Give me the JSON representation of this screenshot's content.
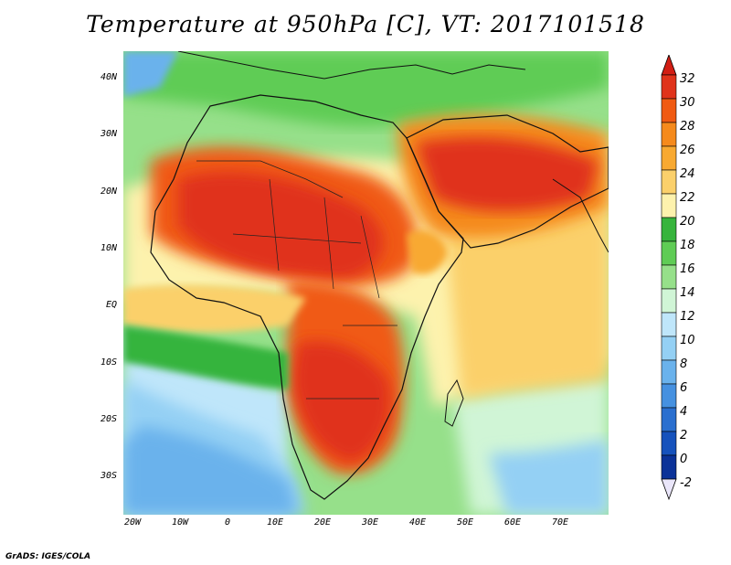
{
  "title": "Temperature at 950hPa [C], VT: 2017101518",
  "credit": "GrADS: IGES/COLA",
  "map": {
    "lat_labels": [
      "40N",
      "30N",
      "20N",
      "10N",
      "EQ",
      "10S",
      "20S",
      "30S"
    ],
    "lon_labels": [
      "20W",
      "10W",
      "0",
      "10E",
      "20E",
      "30E",
      "40E",
      "50E",
      "60E",
      "70E"
    ],
    "domain": {
      "lon_range": [
        -22,
        80
      ],
      "lat_range": [
        -36,
        45
      ]
    }
  },
  "colorbar": {
    "labels": [
      "32",
      "30",
      "28",
      "26",
      "24",
      "22",
      "20",
      "18",
      "16",
      "14",
      "12",
      "10",
      "8",
      "6",
      "4",
      "2",
      "0",
      "-2"
    ],
    "colors": [
      "#e0331b",
      "#f05a12",
      "#f58a1c",
      "#f8a931",
      "#fbd06b",
      "#fdf2ad",
      "#36b43c",
      "#5fcc55",
      "#96e08a",
      "#d0f5d6",
      "#bfe6fa",
      "#94d0f4",
      "#6ab2ec",
      "#4691e0",
      "#2a6fcf",
      "#1652bc",
      "#0b3298",
      "#eae6fa"
    ],
    "top_color": "#d21e14",
    "bottom_color": "#0a1a6e"
  }
}
